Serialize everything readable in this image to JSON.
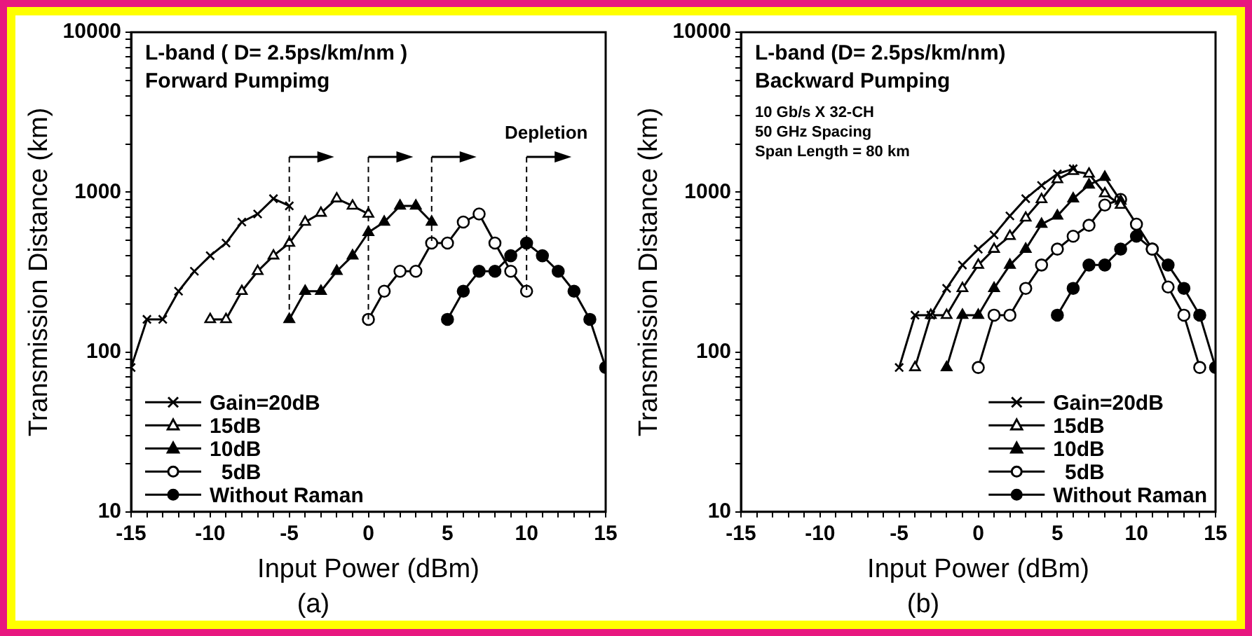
{
  "chart_data": [
    {
      "type": "line",
      "title": "(a)",
      "xlabel": "Input Power (dBm)",
      "ylabel": "Transmission Distance (km)",
      "log": "y",
      "grid": false,
      "legend": "bottom left",
      "xlim": [
        -15,
        15
      ],
      "ylim": [
        10,
        10000
      ],
      "xticks": [
        -15,
        {
          "value": -14,
          "label": null
        },
        {
          "value": -13,
          "label": null
        },
        {
          "value": -12,
          "label": null
        },
        {
          "value": -11,
          "label": null
        },
        -10,
        {
          "value": -9,
          "label": null
        },
        {
          "value": -8,
          "label": null
        },
        {
          "value": -7,
          "label": null
        },
        {
          "value": -6,
          "label": null
        },
        -5,
        {
          "value": -4,
          "label": null
        },
        {
          "value": -3,
          "label": null
        },
        {
          "value": -2,
          "label": null
        },
        {
          "value": -1,
          "label": null
        },
        0,
        {
          "value": 1,
          "label": null
        },
        {
          "value": 2,
          "label": null
        },
        {
          "value": 3,
          "label": null
        },
        {
          "value": 4,
          "label": null
        },
        5,
        {
          "value": 6,
          "label": null
        },
        {
          "value": 7,
          "label": null
        },
        {
          "value": 8,
          "label": null
        },
        {
          "value": 9,
          "label": null
        },
        10,
        {
          "value": 11,
          "label": null
        },
        {
          "value": 12,
          "label": null
        },
        {
          "value": 13,
          "label": null
        },
        {
          "value": 14,
          "label": null
        },
        15
      ],
      "yticks": [
        10,
        {
          "value": 20,
          "label": null
        },
        {
          "value": 30,
          "label": null
        },
        {
          "value": 40,
          "label": null
        },
        {
          "value": 50,
          "label": null
        },
        {
          "value": 60,
          "label": null
        },
        {
          "value": 70,
          "label": null
        },
        {
          "value": 80,
          "label": null
        },
        {
          "value": 90,
          "label": null
        },
        100,
        {
          "value": 200,
          "label": null
        },
        {
          "value": 300,
          "label": null
        },
        {
          "value": 400,
          "label": null
        },
        {
          "value": 500,
          "label": null
        },
        {
          "value": 600,
          "label": null
        },
        {
          "value": 700,
          "label": null
        },
        {
          "value": 800,
          "label": null
        },
        {
          "value": 900,
          "label": null
        },
        1000,
        {
          "value": 2000,
          "label": null
        },
        {
          "value": 3000,
          "label": null
        },
        {
          "value": 4000,
          "label": null
        },
        {
          "value": 5000,
          "label": null
        },
        {
          "value": 6000,
          "label": null
        },
        {
          "value": 7000,
          "label": null
        },
        {
          "value": 8000,
          "label": null
        },
        {
          "value": 9000,
          "label": null
        },
        10000
      ],
      "annotations": [
        "L-band ( D= 2.5ps/km/nm )",
        "Forward Pumpimg"
      ],
      "ref_lines": [
        {
          "axis": "x",
          "value": -5,
          "label": null,
          "line_style": "dashed"
        },
        {
          "axis": "x",
          "value": 0,
          "label": null,
          "line_style": "dashed"
        },
        {
          "axis": "x",
          "value": 4,
          "label": null,
          "line_style": "dashed"
        },
        {
          "axis": "x",
          "value": 10,
          "label": "Depletion",
          "line_style": "dashed"
        }
      ],
      "series": [
        {
          "name": "Gain=20dB",
          "color": "#000000",
          "marker": "cross",
          "colors": [
            "#000000",
            "#000000",
            "#000000",
            "#000000",
            "#000000",
            "#000000",
            "#000000",
            "#000000",
            "#000000",
            "#000000",
            "#000000"
          ],
          "x": [
            -15,
            -14,
            -13,
            -12,
            -11,
            -10,
            -9,
            -8,
            -7,
            -6,
            -5
          ],
          "values": [
            80,
            160,
            160,
            240,
            320,
            400,
            480,
            650,
            730,
            910,
            820
          ]
        },
        {
          "name": "15dB",
          "color": "#000000",
          "marker": "triangle",
          "colors": [
            "#ffffff",
            "#ffffff",
            "#ffffff",
            "#ffffff",
            "#ffffff",
            "#ffffff",
            "#ffffff",
            "#ffffff",
            "#ffffff",
            "#ffffff",
            "#ffffff"
          ],
          "x": [
            -10,
            -9,
            -8,
            -7,
            -6,
            -5,
            -4,
            -3,
            -2,
            -1,
            0
          ],
          "values": [
            160,
            160,
            240,
            320,
            400,
            480,
            650,
            740,
            910,
            820,
            730
          ]
        },
        {
          "name": "10dB",
          "color": "#000000",
          "marker": "triangle",
          "colors": [
            "#000000",
            "#000000",
            "#000000",
            "#000000",
            "#000000",
            "#000000",
            "#000000",
            "#000000",
            "#000000",
            "#000000"
          ],
          "x": [
            -5,
            -4,
            -3,
            -2,
            -1,
            0,
            1,
            2,
            3,
            4
          ],
          "values": [
            160,
            240,
            240,
            320,
            400,
            560,
            650,
            820,
            820,
            650
          ]
        },
        {
          "name": "  5dB",
          "color": "#000000",
          "marker": "circle",
          "colors": [
            "#ffffff",
            "#ffffff",
            "#ffffff",
            "#ffffff",
            "#ffffff",
            "#ffffff",
            "#ffffff",
            "#ffffff",
            "#ffffff",
            "#ffffff",
            "#ffffff"
          ],
          "x": [
            0,
            1,
            2,
            3,
            4,
            5,
            6,
            7,
            8,
            9,
            10
          ],
          "values": [
            160,
            240,
            320,
            320,
            480,
            480,
            650,
            730,
            480,
            320,
            240
          ]
        },
        {
          "name": "Without Raman",
          "color": "#000000",
          "marker": "circle",
          "colors": [
            "#000000",
            "#000000",
            "#000000",
            "#000000",
            "#000000",
            "#000000",
            "#000000",
            "#000000",
            "#000000",
            "#000000",
            "#000000"
          ],
          "x": [
            5,
            6,
            7,
            8,
            9,
            10,
            11,
            12,
            13,
            14,
            15
          ],
          "values": [
            160,
            240,
            320,
            320,
            400,
            480,
            400,
            320,
            240,
            160,
            80
          ]
        }
      ]
    },
    {
      "type": "line",
      "title": "(b)",
      "xlabel": "Input Power (dBm)",
      "ylabel": "Transmission Distance (km)",
      "log": "y",
      "grid": false,
      "legend": "bottom right",
      "xlim": [
        -15,
        15
      ],
      "ylim": [
        10,
        10000
      ],
      "xticks": [
        -15,
        {
          "value": -14,
          "label": null
        },
        {
          "value": -13,
          "label": null
        },
        {
          "value": -12,
          "label": null
        },
        {
          "value": -11,
          "label": null
        },
        -10,
        {
          "value": -9,
          "label": null
        },
        {
          "value": -8,
          "label": null
        },
        {
          "value": -7,
          "label": null
        },
        {
          "value": -6,
          "label": null
        },
        -5,
        {
          "value": -4,
          "label": null
        },
        {
          "value": -3,
          "label": null
        },
        {
          "value": -2,
          "label": null
        },
        {
          "value": -1,
          "label": null
        },
        0,
        {
          "value": 1,
          "label": null
        },
        {
          "value": 2,
          "label": null
        },
        {
          "value": 3,
          "label": null
        },
        {
          "value": 4,
          "label": null
        },
        5,
        {
          "value": 6,
          "label": null
        },
        {
          "value": 7,
          "label": null
        },
        {
          "value": 8,
          "label": null
        },
        {
          "value": 9,
          "label": null
        },
        10,
        {
          "value": 11,
          "label": null
        },
        {
          "value": 12,
          "label": null
        },
        {
          "value": 13,
          "label": null
        },
        {
          "value": 14,
          "label": null
        },
        15
      ],
      "yticks": [
        10,
        {
          "value": 20,
          "label": null
        },
        {
          "value": 30,
          "label": null
        },
        {
          "value": 40,
          "label": null
        },
        {
          "value": 50,
          "label": null
        },
        {
          "value": 60,
          "label": null
        },
        {
          "value": 70,
          "label": null
        },
        {
          "value": 80,
          "label": null
        },
        {
          "value": 90,
          "label": null
        },
        100,
        {
          "value": 200,
          "label": null
        },
        {
          "value": 300,
          "label": null
        },
        {
          "value": 400,
          "label": null
        },
        {
          "value": 500,
          "label": null
        },
        {
          "value": 600,
          "label": null
        },
        {
          "value": 700,
          "label": null
        },
        {
          "value": 800,
          "label": null
        },
        {
          "value": 900,
          "label": null
        },
        1000,
        {
          "value": 2000,
          "label": null
        },
        {
          "value": 3000,
          "label": null
        },
        {
          "value": 4000,
          "label": null
        },
        {
          "value": 5000,
          "label": null
        },
        {
          "value": 6000,
          "label": null
        },
        {
          "value": 7000,
          "label": null
        },
        {
          "value": 8000,
          "label": null
        },
        {
          "value": 9000,
          "label": null
        },
        10000
      ],
      "annotations": [
        "L-band (D= 2.5ps/km/nm)",
        "Backward Pumping",
        "10 Gb/s X 32-CH",
        "50 GHz Spacing",
        "Span Length = 80 km"
      ],
      "series": [
        {
          "name": "Gain=20dB",
          "color": "#000000",
          "marker": "cross",
          "colors": [
            "#000000",
            "#000000",
            "#000000",
            "#000000",
            "#000000",
            "#000000",
            "#000000",
            "#000000",
            "#000000",
            "#000000",
            "#000000",
            "#000000"
          ],
          "x": [
            -5,
            -4,
            -3,
            -2,
            -1,
            0,
            1,
            2,
            3,
            4,
            5,
            6
          ],
          "values": [
            80,
            170,
            170,
            250,
            350,
            440,
            540,
            710,
            910,
            1100,
            1300,
            1400
          ]
        },
        {
          "name": "15dB",
          "color": "#000000",
          "marker": "triangle",
          "colors": [
            "#ffffff",
            "#ffffff",
            "#ffffff",
            "#ffffff",
            "#ffffff",
            "#ffffff",
            "#ffffff",
            "#ffffff",
            "#ffffff",
            "#ffffff",
            "#ffffff",
            "#ffffff",
            "#ffffff",
            "#ffffff"
          ],
          "x": [
            -4,
            -3,
            -2,
            -1,
            0,
            1,
            2,
            3,
            4,
            5,
            6,
            7,
            8,
            9
          ],
          "values": [
            80,
            170,
            170,
            250,
            350,
            440,
            530,
            690,
            900,
            1200,
            1350,
            1300,
            980,
            830
          ]
        },
        {
          "name": "10dB",
          "color": "#000000",
          "marker": "triangle",
          "colors": [
            "#000000",
            "#000000",
            "#000000",
            "#000000",
            "#000000",
            "#000000",
            "#000000",
            "#000000",
            "#000000",
            "#000000",
            "#000000",
            "#000000"
          ],
          "x": [
            -2,
            -1,
            0,
            1,
            2,
            3,
            4,
            5,
            6,
            7,
            8,
            9
          ],
          "values": [
            80,
            170,
            170,
            250,
            350,
            440,
            630,
            710,
            910,
            1110,
            1240,
            880
          ]
        },
        {
          "name": "  5dB",
          "color": "#000000",
          "marker": "circle",
          "colors": [
            "#ffffff",
            "#ffffff",
            "#ffffff",
            "#ffffff",
            "#ffffff",
            "#ffffff",
            "#ffffff",
            "#ffffff",
            "#ffffff",
            "#ffffff",
            "#ffffff",
            "#ffffff",
            "#ffffff",
            "#ffffff",
            "#ffffff"
          ],
          "x": [
            0,
            1,
            2,
            3,
            4,
            5,
            6,
            7,
            8,
            9,
            10,
            11,
            12,
            13,
            14
          ],
          "values": [
            80,
            170,
            170,
            250,
            350,
            440,
            530,
            620,
            830,
            900,
            630,
            440,
            255,
            170,
            80
          ]
        },
        {
          "name": "Without Raman",
          "color": "#000000",
          "marker": "circle",
          "colors": [
            "#000000",
            "#000000",
            "#000000",
            "#000000",
            "#000000",
            "#000000",
            "#000000",
            "#000000",
            "#000000",
            "#000000",
            "#000000"
          ],
          "x": [
            5,
            6,
            7,
            8,
            9,
            10,
            11,
            12,
            13,
            14,
            15
          ],
          "values": [
            170,
            250,
            350,
            350,
            440,
            530,
            440,
            350,
            250,
            170,
            80
          ]
        }
      ]
    }
  ]
}
